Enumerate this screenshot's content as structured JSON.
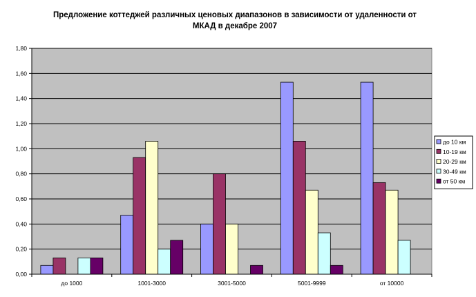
{
  "chart_data": {
    "type": "bar",
    "title": "Предложение коттеджей различных ценовых диапазонов в зависимости от удаленности от МКАД в декабре 2007",
    "categories": [
      "до 1000",
      "1001-3000",
      "3001-5000",
      "5001-9999",
      "от 10000"
    ],
    "series": [
      {
        "name": "до 10 км",
        "color": "#9999ff",
        "values": [
          0.07,
          0.47,
          0.4,
          1.53,
          1.53
        ]
      },
      {
        "name": "10-19 км",
        "color": "#993366",
        "values": [
          0.13,
          0.93,
          0.8,
          1.06,
          0.73
        ]
      },
      {
        "name": "20-29 км",
        "color": "#ffffcc",
        "values": [
          0,
          1.06,
          0.4,
          0.67,
          0.67
        ]
      },
      {
        "name": "30-49 км",
        "color": "#ccffff",
        "values": [
          0.13,
          0.2,
          0,
          0.33,
          0.27
        ]
      },
      {
        "name": "от 50 км",
        "color": "#660066",
        "values": [
          0.13,
          0.27,
          0.07,
          0.07,
          0
        ]
      }
    ],
    "yticks": [
      "0,00",
      "0,20",
      "0,40",
      "0,60",
      "0,80",
      "1,00",
      "1,20",
      "1,40",
      "1,60",
      "1,80"
    ],
    "ylim": [
      0,
      1.8
    ],
    "grid": true,
    "plot_background": "#c0c0c0",
    "legend_position": "right"
  }
}
